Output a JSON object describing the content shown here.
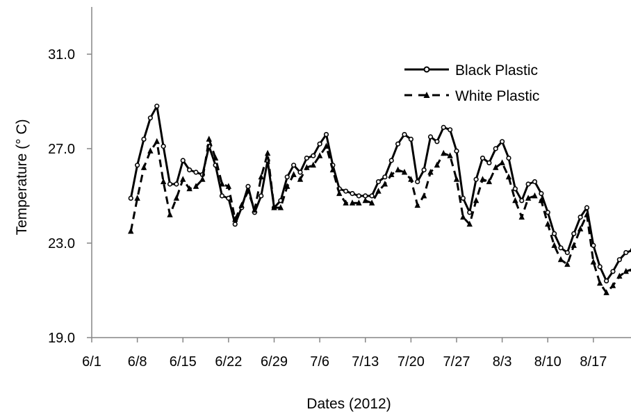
{
  "chart_data": {
    "type": "line",
    "title": "",
    "xlabel": "Dates (2012)",
    "ylabel": "Temperature (° C)",
    "ylim": [
      19.0,
      33.0
    ],
    "yticks": [
      "19.0",
      "23.0",
      "27.0",
      "31.0"
    ],
    "xlim": [
      "6/1",
      "8/24"
    ],
    "xticks": [
      "6/1",
      "6/8",
      "6/15",
      "6/22",
      "6/29",
      "7/6",
      "7/13",
      "7/20",
      "7/27",
      "8/3",
      "8/10",
      "8/17"
    ],
    "legend_position": "top-right",
    "x": [
      "6/7",
      "6/8",
      "6/9",
      "6/10",
      "6/11",
      "6/12",
      "6/13",
      "6/14",
      "6/15",
      "6/16",
      "6/17",
      "6/18",
      "6/19",
      "6/20",
      "6/21",
      "6/22",
      "6/23",
      "6/24",
      "6/25",
      "6/26",
      "6/27",
      "6/28",
      "6/29",
      "6/30",
      "7/1",
      "7/2",
      "7/3",
      "7/4",
      "7/5",
      "7/6",
      "7/7",
      "7/8",
      "7/9",
      "7/10",
      "7/11",
      "7/12",
      "7/13",
      "7/14",
      "7/15",
      "7/16",
      "7/17",
      "7/18",
      "7/19",
      "7/20",
      "7/21",
      "7/22",
      "7/23",
      "7/24",
      "7/25",
      "7/26",
      "7/27",
      "7/28",
      "7/29",
      "7/30",
      "7/31",
      "8/1",
      "8/2",
      "8/3",
      "8/4",
      "8/5",
      "8/6",
      "8/7",
      "8/8",
      "8/9",
      "8/10",
      "8/11",
      "8/12",
      "8/13",
      "8/14",
      "8/15",
      "8/16",
      "8/17",
      "8/18",
      "8/19",
      "8/20",
      "8/21",
      "8/22",
      "8/23",
      "8/24"
    ],
    "series": [
      {
        "name": "Black Plastic",
        "style": "solid-circle",
        "color": "#000000",
        "values": [
          24.9,
          26.3,
          27.4,
          28.3,
          28.8,
          27.1,
          25.5,
          25.5,
          26.5,
          26.1,
          26.0,
          25.9,
          27.1,
          26.3,
          25.0,
          24.9,
          23.8,
          24.5,
          25.4,
          24.3,
          25.0,
          26.5,
          24.5,
          24.8,
          25.8,
          26.3,
          26.0,
          26.6,
          26.7,
          27.2,
          27.6,
          26.3,
          25.3,
          25.2,
          25.1,
          25.0,
          25.0,
          25.0,
          25.6,
          25.8,
          26.5,
          27.2,
          27.6,
          27.4,
          25.6,
          26.1,
          27.5,
          27.3,
          27.9,
          27.8,
          26.9,
          24.9,
          24.3,
          25.7,
          26.6,
          26.4,
          27.0,
          27.3,
          26.6,
          25.3,
          24.8,
          25.5,
          25.6,
          25.1,
          24.3,
          23.4,
          22.8,
          22.6,
          23.4,
          24.1,
          24.5,
          22.9,
          22.0,
          21.4,
          21.8,
          22.3,
          22.6,
          22.7,
          22.8
        ]
      },
      {
        "name": "White Plastic",
        "style": "dashed-triangle",
        "color": "#000000",
        "values": [
          23.5,
          24.9,
          26.2,
          26.9,
          27.3,
          25.6,
          24.2,
          24.9,
          25.7,
          25.3,
          25.4,
          25.7,
          27.4,
          26.6,
          25.5,
          25.4,
          24.0,
          24.6,
          25.2,
          24.4,
          25.8,
          26.8,
          24.5,
          24.5,
          25.4,
          25.9,
          25.7,
          26.2,
          26.3,
          26.7,
          27.1,
          26.1,
          25.1,
          24.7,
          24.7,
          24.7,
          24.8,
          24.7,
          25.2,
          25.5,
          25.9,
          26.1,
          26.0,
          25.7,
          24.6,
          25.0,
          26.0,
          26.3,
          26.8,
          26.7,
          25.7,
          24.1,
          23.8,
          24.8,
          25.7,
          25.6,
          26.2,
          26.4,
          25.8,
          24.8,
          24.1,
          24.9,
          25.0,
          24.8,
          23.8,
          22.9,
          22.3,
          22.1,
          22.9,
          23.6,
          24.2,
          22.2,
          21.3,
          20.9,
          21.2,
          21.6,
          21.8,
          21.9,
          22.0
        ]
      }
    ]
  }
}
